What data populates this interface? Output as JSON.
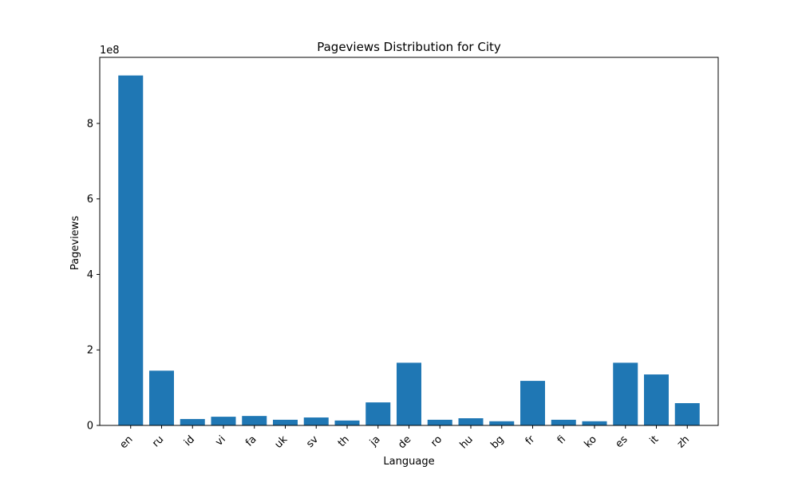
{
  "chart_data": {
    "type": "bar",
    "title": "Pageviews Distribution for City",
    "xlabel": "Language",
    "ylabel": "Pageviews",
    "y_scale_label": "1e8",
    "categories": [
      "en",
      "ru",
      "id",
      "vi",
      "fa",
      "uk",
      "sv",
      "th",
      "ja",
      "de",
      "ro",
      "hu",
      "bg",
      "fr",
      "fi",
      "ko",
      "es",
      "it",
      "zh"
    ],
    "values": [
      927000000,
      145000000,
      17000000,
      23000000,
      25000000,
      15000000,
      21000000,
      13000000,
      61000000,
      166000000,
      15000000,
      19000000,
      11000000,
      118000000,
      15000000,
      11000000,
      166000000,
      135000000,
      59000000
    ],
    "ylim": [
      0,
      975000000
    ],
    "yticks": [
      0,
      200000000,
      400000000,
      600000000,
      800000000
    ],
    "ytick_labels": [
      "0",
      "2",
      "4",
      "6",
      "8"
    ],
    "bar_color": "#1f77b4",
    "grid": false,
    "legend": "none"
  }
}
